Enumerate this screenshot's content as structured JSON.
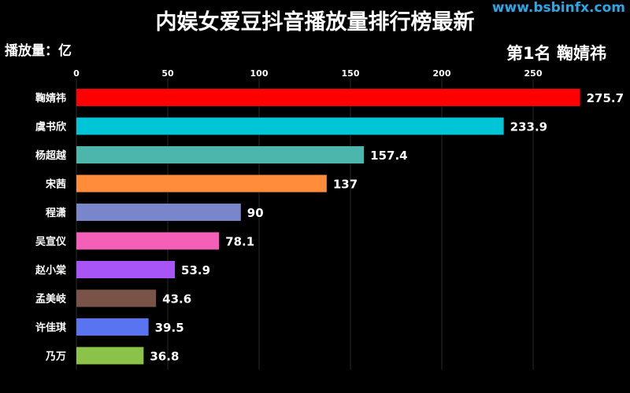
{
  "watermark": "www.bsbinfx.com",
  "chart_data": {
    "type": "bar",
    "orientation": "horizontal",
    "title": "内娱女爱豆抖音播放量排行榜最新",
    "unit_label": "播放量：亿",
    "leader_label": "第1名 鞠婧祎",
    "categories": [
      "鞠婧祎",
      "虞书欣",
      "杨超越",
      "宋茜",
      "程潇",
      "吴宣仪",
      "赵小棠",
      "孟美岐",
      "许佳琪",
      "乃万"
    ],
    "values": [
      275.7,
      233.9,
      157.4,
      137,
      90,
      78.1,
      53.9,
      43.6,
      39.5,
      36.8
    ],
    "value_labels": [
      "275.7",
      "233.9",
      "157.4",
      "137",
      "90",
      "78.1",
      "53.9",
      "43.6",
      "39.5",
      "36.8"
    ],
    "colors": [
      "#ff0000",
      "#00c5d6",
      "#4db6ac",
      "#ff8c3a",
      "#7986cb",
      "#f460b8",
      "#a855f7",
      "#7a5348",
      "#5874f0",
      "#8bc34a"
    ],
    "xticks": [
      0,
      50,
      100,
      150,
      200,
      250
    ],
    "xlim": [
      0,
      290
    ],
    "grid": true,
    "tick_position": "top"
  }
}
